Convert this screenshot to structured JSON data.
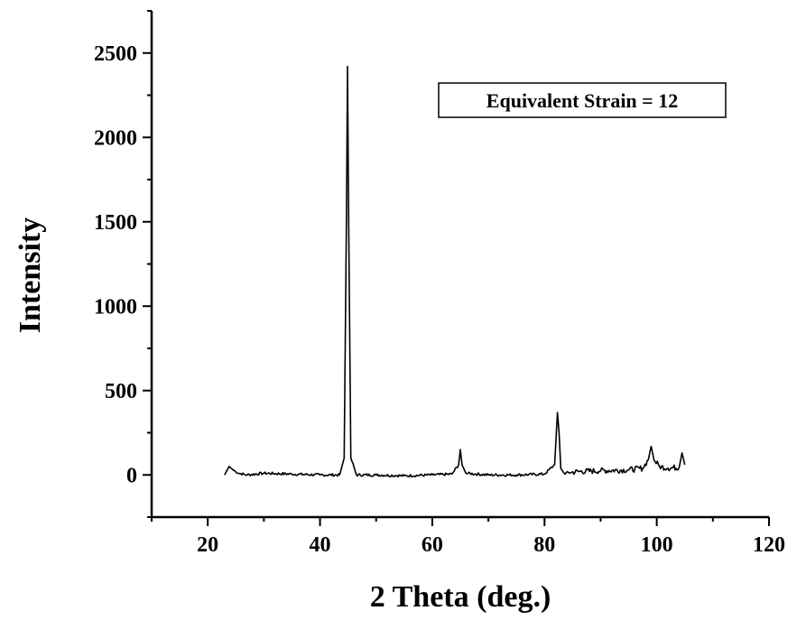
{
  "chart_data": {
    "type": "line",
    "title": "",
    "xlabel": "2 Theta (deg.)",
    "ylabel": "Intensity",
    "xlim": [
      10,
      120
    ],
    "ylim": [
      -250,
      2750
    ],
    "xticks": [
      20,
      40,
      60,
      80,
      100,
      120
    ],
    "yticks": [
      0,
      500,
      1000,
      1500,
      2000,
      2500
    ],
    "grid": false,
    "annotations": [
      {
        "text": "Equivalent Strain = 12"
      }
    ],
    "series": [
      {
        "color": "#000000",
        "x": [
          23.0,
          23.8,
          24.5,
          25.5,
          27.0,
          30.0,
          35.0,
          40.0,
          43.5,
          44.3,
          44.7,
          44.9,
          45.1,
          45.5,
          46.5,
          50.0,
          55.0,
          60.0,
          63.5,
          64.7,
          65.0,
          65.3,
          66.0,
          70.0,
          75.0,
          80.0,
          81.8,
          82.3,
          82.6,
          82.9,
          83.5,
          86.0,
          90.0,
          95.0,
          97.5,
          98.5,
          99.0,
          99.5,
          100.5,
          102.0,
          104.0,
          104.5,
          105.0
        ],
        "y": [
          0,
          50,
          30,
          10,
          0,
          10,
          5,
          0,
          0,
          100,
          1500,
          2420,
          1500,
          100,
          0,
          0,
          -5,
          0,
          5,
          60,
          150,
          60,
          10,
          0,
          0,
          5,
          60,
          370,
          250,
          40,
          10,
          20,
          25,
          30,
          40,
          90,
          170,
          90,
          50,
          40,
          45,
          130,
          60
        ]
      }
    ]
  }
}
